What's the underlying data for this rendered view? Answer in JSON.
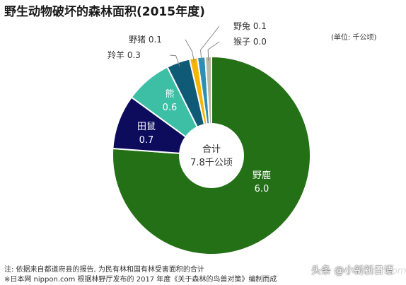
{
  "chart_data": {
    "type": "pie",
    "title": "野生动物破坏的森林面积(2015年度)",
    "unit_label": "(单位: 千公顷)",
    "center_label": {
      "line1": "合计",
      "line2": "7.8千公顷"
    },
    "slices": [
      {
        "name": "野鹿",
        "value": "6.0",
        "color": "#237016"
      },
      {
        "name": "田鼠",
        "value": "0.7",
        "color": "#0c0b5c"
      },
      {
        "name": "熊",
        "value": "0.6",
        "color": "#3dbfa6"
      },
      {
        "name": "羚羊",
        "value": "0.3",
        "color": "#0e5a77"
      },
      {
        "name": "野猪",
        "value": "0.1",
        "color": "#f7b500"
      },
      {
        "name": "野兔",
        "value": "0.1",
        "color": "#2e8fb3"
      },
      {
        "name": "猴子",
        "value": "0.0",
        "color": "#b9b7a6"
      }
    ]
  },
  "notes": [
    "注: 依据来自都道府县的报告, 为民有林和国有林受害面积的合计",
    "※日本网 nippon.com 根据林野厅发布的 2017 年度《关于森林的鸟兽对策》编制而成"
  ],
  "watermark": {
    "text": "头条 @小新新日语",
    "site": "nippon.com"
  }
}
